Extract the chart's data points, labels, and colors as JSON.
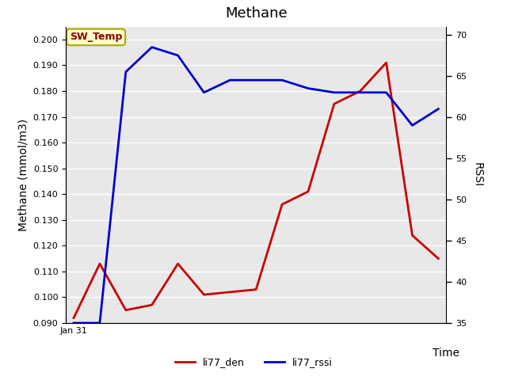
{
  "title": "Methane",
  "xlabel": "Time",
  "ylabel_left": "Methane (mmol/m3)",
  "ylabel_right": "RSSI",
  "red_values": [
    0.092,
    0.113,
    0.095,
    0.097,
    0.113,
    0.101,
    0.102,
    0.103,
    0.136,
    0.141,
    0.175,
    0.18,
    0.191,
    0.124,
    0.115
  ],
  "blue_values_rssi": [
    35,
    35,
    65.5,
    68.5,
    67.5,
    63,
    64.5,
    64.5,
    64.5,
    63.5,
    63,
    63,
    63,
    59,
    61
  ],
  "ylim_left": [
    0.09,
    0.205
  ],
  "ylim_right": [
    35,
    71
  ],
  "yticks_left": [
    0.09,
    0.1,
    0.11,
    0.12,
    0.13,
    0.14,
    0.15,
    0.16,
    0.17,
    0.18,
    0.19,
    0.2
  ],
  "yticks_right": [
    35,
    40,
    45,
    50,
    55,
    60,
    65,
    70
  ],
  "x_tick_label": "Jan 31",
  "background_color": "#e8e8e8",
  "red_color": "#cc0000",
  "blue_color": "#0000cc",
  "annotation_text": "SW_Temp",
  "annotation_bg": "#ffffcc",
  "annotation_border": "#aaaa00",
  "annotation_text_color": "#8b0000",
  "legend_labels": [
    "li77_den",
    "li77_rssi"
  ],
  "figsize": [
    6.4,
    4.8
  ],
  "dpi": 100
}
